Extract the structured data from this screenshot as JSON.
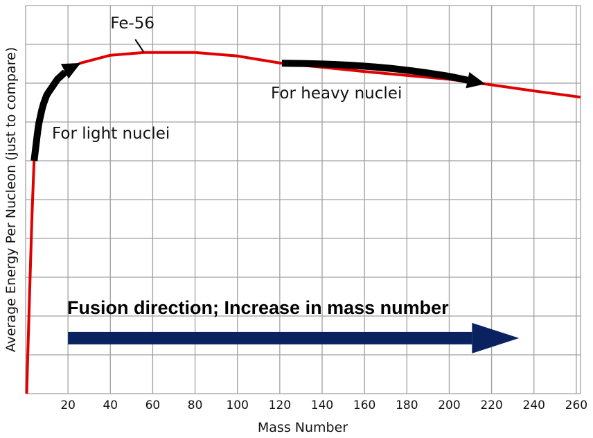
{
  "chart_data": {
    "type": "line",
    "title": "",
    "xlabel": "Mass Number",
    "ylabel": "Average Energy Per Nucleon (just to compare)",
    "xlim": [
      0,
      262
    ],
    "ylim": [
      0,
      10
    ],
    "x_ticks": [
      20,
      40,
      60,
      80,
      100,
      120,
      140,
      160,
      180,
      200,
      220,
      240,
      260
    ],
    "y_gridlines": [
      0,
      1,
      2,
      3,
      4,
      5,
      6,
      7,
      8,
      9,
      10
    ],
    "grid": true,
    "legend": "none",
    "series": [
      {
        "color": "#e00000",
        "x": [
          0.5,
          1,
          2,
          3,
          4,
          6,
          8,
          10,
          15,
          20,
          26,
          40,
          56,
          80,
          100,
          120,
          160,
          200,
          217,
          240,
          262
        ],
        "y": [
          0,
          1.0,
          2.8,
          4.6,
          6.0,
          6.9,
          7.4,
          7.7,
          8.1,
          8.35,
          8.52,
          8.72,
          8.79,
          8.79,
          8.7,
          8.52,
          8.3,
          8.1,
          7.98,
          7.8,
          7.64
        ]
      }
    ],
    "annotations": [
      {
        "text": "Fe-56",
        "points_to": [
          56,
          8.79
        ]
      },
      {
        "text": "For light nuclei",
        "arrow_from": [
          4,
          6.0
        ],
        "arrow_to": [
          26,
          8.52
        ],
        "arrow_color": "#000000"
      },
      {
        "text": "For heavy nuclei",
        "arrow_from": [
          121,
          8.5
        ],
        "arrow_to": [
          217,
          7.98
        ],
        "arrow_color": "#000000"
      },
      {
        "text": "Fusion direction; Increase in mass number",
        "arrow_from": [
          20,
          1.43
        ],
        "arrow_to": [
          233,
          1.43
        ],
        "arrow_color": "#0b2260"
      }
    ]
  },
  "colors": {
    "curve": "#e00000",
    "grid": "#a0a0a0",
    "fusion_arrow": "#0b2260",
    "process_arrow": "#000000"
  }
}
